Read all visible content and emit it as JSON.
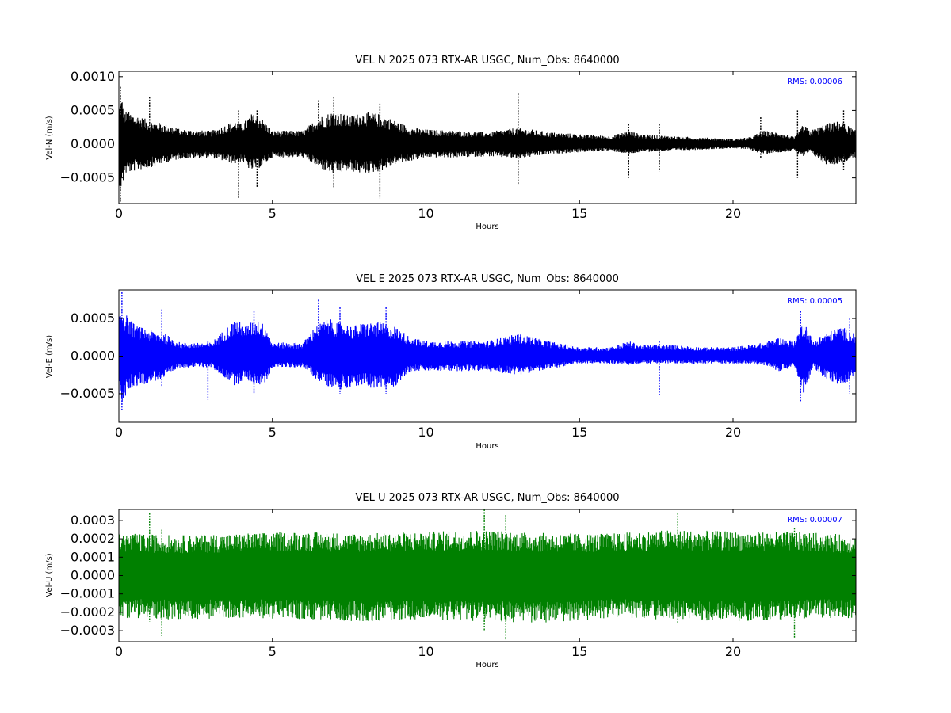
{
  "chart_data": [
    {
      "type": "scatter",
      "title": "VEL N 2025 073 RTX-AR  USGC, Num_Obs: 8640000",
      "xlabel": "Hours",
      "ylabel": "Vel-N (m/s)",
      "xlim": [
        0,
        24
      ],
      "ylim": [
        -0.00088,
        0.00108
      ],
      "xticks": [
        0,
        5,
        10,
        15,
        20
      ],
      "yticks": [
        -0.0005,
        0.0,
        0.0005,
        0.001
      ],
      "ytick_labels": [
        "−0.0005",
        "0.0000",
        "0.0005",
        "0.0010"
      ],
      "color": "#000000",
      "annotation": "RMS:  0.00006",
      "annotation_color": "#0000ff",
      "envelope": {
        "hours": [
          0,
          0.1,
          0.2,
          0.5,
          1,
          1.5,
          2,
          3,
          3.8,
          4,
          4.3,
          4.6,
          5,
          6,
          6.5,
          7,
          7.5,
          8,
          8.5,
          9,
          9.5,
          10,
          11,
          12,
          13,
          14,
          15,
          16,
          16.6,
          17,
          18,
          19,
          20,
          20.5,
          21,
          21.5,
          22,
          22.3,
          22.5,
          23,
          23.5,
          24
        ],
        "upper": [
          0.0006,
          0.0007,
          0.0005,
          0.00045,
          0.00035,
          0.0003,
          0.00022,
          0.0002,
          0.00035,
          0.0003,
          0.00045,
          0.00042,
          0.0002,
          0.0002,
          0.0004,
          0.0005,
          0.00042,
          0.00048,
          0.00045,
          0.00035,
          0.00025,
          0.00022,
          0.0002,
          0.00018,
          0.00025,
          0.00018,
          0.00015,
          0.00012,
          0.0002,
          0.00015,
          0.00012,
          0.0001,
          8e-05,
          0.0001,
          0.0002,
          0.00018,
          0.0001,
          0.0003,
          0.0002,
          0.0003,
          0.00035,
          0.0002
        ],
        "lower": [
          -0.0006,
          -0.0007,
          -0.00045,
          -0.0004,
          -0.00035,
          -0.00028,
          -0.00022,
          -0.0002,
          -0.0003,
          -0.00025,
          -0.0004,
          -0.00035,
          -0.0002,
          -0.0002,
          -0.00035,
          -0.00045,
          -0.0004,
          -0.00045,
          -0.0004,
          -0.0003,
          -0.00025,
          -0.0002,
          -0.0002,
          -0.00018,
          -0.00022,
          -0.00015,
          -0.00012,
          -0.0001,
          -0.00015,
          -0.00012,
          -0.0001,
          -8e-05,
          -6e-05,
          -8e-05,
          -0.00015,
          -0.00012,
          -0.0001,
          -0.0002,
          -0.00012,
          -0.0003,
          -0.0003,
          -0.0002
        ]
      },
      "spikes": [
        {
          "x": 0.05,
          "lo": -0.00085,
          "hi": 0.00085
        },
        {
          "x": 1.0,
          "lo": -0.0003,
          "hi": 0.0007
        },
        {
          "x": 3.9,
          "lo": -0.0008,
          "hi": 0.0005
        },
        {
          "x": 4.5,
          "lo": -0.00065,
          "hi": 0.0005
        },
        {
          "x": 6.5,
          "lo": -0.0003,
          "hi": 0.00065
        },
        {
          "x": 7.0,
          "lo": -0.00065,
          "hi": 0.0007
        },
        {
          "x": 8.5,
          "lo": -0.0008,
          "hi": 0.0006
        },
        {
          "x": 13.0,
          "lo": -0.0006,
          "hi": 0.00075
        },
        {
          "x": 16.6,
          "lo": -0.0005,
          "hi": 0.0003
        },
        {
          "x": 17.6,
          "lo": -0.0004,
          "hi": 0.0003
        },
        {
          "x": 20.9,
          "lo": -0.0002,
          "hi": 0.0004
        },
        {
          "x": 22.1,
          "lo": -0.0005,
          "hi": 0.0005
        },
        {
          "x": 23.6,
          "lo": -0.0004,
          "hi": 0.0005
        }
      ]
    },
    {
      "type": "scatter",
      "title": "VEL E 2025 073 RTX-AR  USGC, Num_Obs: 8640000",
      "xlabel": "Hours",
      "ylabel": "Vel-E (m/s)",
      "xlim": [
        0,
        24
      ],
      "ylim": [
        -0.00088,
        0.00088
      ],
      "xticks": [
        0,
        5,
        10,
        15,
        20
      ],
      "yticks": [
        -0.0005,
        0.0,
        0.0005
      ],
      "ytick_labels": [
        "−0.0005",
        "0.0000",
        "0.0005"
      ],
      "color": "#0000ff",
      "annotation": "RMS:  0.00005",
      "annotation_color": "#0000ff",
      "envelope": {
        "hours": [
          0,
          0.1,
          0.3,
          0.6,
          1,
          1.5,
          2,
          3,
          3.8,
          4.1,
          4.5,
          4.8,
          5,
          6,
          6.4,
          6.8,
          7.2,
          7.6,
          8,
          8.5,
          9,
          9.5,
          10,
          11,
          12,
          13,
          14,
          15,
          16,
          16.6,
          17,
          18,
          19,
          20,
          21,
          21.5,
          22,
          22.3,
          22.6,
          23,
          23.5,
          24
        ],
        "upper": [
          0.0006,
          0.0007,
          0.0005,
          0.0004,
          0.00035,
          0.0003,
          0.00018,
          0.00018,
          0.0005,
          0.0004,
          0.0005,
          0.0004,
          0.00018,
          0.00018,
          0.0004,
          0.0005,
          0.00045,
          0.0004,
          0.00045,
          0.00045,
          0.0004,
          0.00025,
          0.0002,
          0.0002,
          0.0002,
          0.0003,
          0.0002,
          0.00012,
          0.00012,
          0.0002,
          0.00015,
          0.00015,
          0.00012,
          0.00012,
          0.00018,
          0.00025,
          0.0002,
          0.0005,
          0.0002,
          0.0003,
          0.0004,
          0.0003
        ],
        "lower": [
          -0.0005,
          -0.0007,
          -0.00045,
          -0.0004,
          -0.00035,
          -0.0003,
          -0.00015,
          -0.00015,
          -0.0004,
          -0.0003,
          -0.0004,
          -0.00035,
          -0.00015,
          -0.00015,
          -0.0003,
          -0.0004,
          -0.00045,
          -0.0004,
          -0.0004,
          -0.00045,
          -0.0004,
          -0.0002,
          -0.0002,
          -0.0002,
          -0.0002,
          -0.00025,
          -0.00018,
          -0.0001,
          -0.0001,
          -0.00012,
          -0.0001,
          -0.0001,
          -0.0001,
          -0.0001,
          -0.00012,
          -0.0002,
          -0.00015,
          -0.0005,
          -0.00015,
          -0.0003,
          -0.0004,
          -0.0003
        ]
      },
      "spikes": [
        {
          "x": 0.1,
          "lo": -0.00072,
          "hi": 0.00085
        },
        {
          "x": 1.4,
          "lo": -0.0004,
          "hi": 0.00062
        },
        {
          "x": 2.9,
          "lo": -0.00058,
          "hi": 0.0002
        },
        {
          "x": 4.4,
          "lo": -0.0005,
          "hi": 0.0006
        },
        {
          "x": 6.5,
          "lo": -0.0003,
          "hi": 0.00075
        },
        {
          "x": 7.2,
          "lo": -0.0005,
          "hi": 0.00065
        },
        {
          "x": 8.7,
          "lo": -0.0005,
          "hi": 0.00065
        },
        {
          "x": 17.6,
          "lo": -0.00052,
          "hi": 0.0002
        },
        {
          "x": 22.2,
          "lo": -0.0006,
          "hi": 0.0006
        },
        {
          "x": 23.8,
          "lo": -0.0005,
          "hi": 0.0005
        }
      ]
    },
    {
      "type": "line",
      "title": "VEL U 2025 073 RTX-AR  USGC, Num_Obs: 8640000",
      "xlabel": "Hours",
      "ylabel": "Vel-U (m/s)",
      "xlim": [
        0,
        24
      ],
      "ylim": [
        -0.00036,
        0.00036
      ],
      "xticks": [
        0,
        5,
        10,
        15,
        20
      ],
      "yticks": [
        -0.0003,
        -0.0002,
        -0.0001,
        0.0,
        0.0001,
        0.0002,
        0.0003
      ],
      "ytick_labels": [
        "−0.0003",
        "−0.0002",
        "−0.0001",
        "0.0000",
        "0.0001",
        "0.0002",
        "0.0003"
      ],
      "color": "#008000",
      "annotation": "RMS:  0.00007",
      "annotation_color": "#0000ff",
      "envelope": {
        "hours": [
          0,
          2,
          4,
          6,
          8,
          10,
          12,
          14,
          16,
          18,
          20,
          22,
          24
        ],
        "upper": [
          0.00023,
          0.00022,
          0.00023,
          0.00024,
          0.00023,
          0.00024,
          0.00025,
          0.00023,
          0.00023,
          0.00025,
          0.00024,
          0.00024,
          0.00022
        ],
        "lower": [
          -0.00023,
          -0.00024,
          -0.00023,
          -0.00024,
          -0.00025,
          -0.00024,
          -0.00025,
          -0.00026,
          -0.00023,
          -0.00024,
          -0.00025,
          -0.00024,
          -0.00023
        ]
      },
      "spikes": [
        {
          "x": 1.0,
          "lo": -0.00025,
          "hi": 0.00034
        },
        {
          "x": 1.4,
          "lo": -0.00033,
          "hi": 0.00025
        },
        {
          "x": 11.9,
          "lo": -0.0003,
          "hi": 0.00036
        },
        {
          "x": 12.6,
          "lo": -0.00035,
          "hi": 0.00033
        },
        {
          "x": 18.2,
          "lo": -0.00026,
          "hi": 0.00034
        },
        {
          "x": 22.0,
          "lo": -0.00034,
          "hi": 0.00026
        }
      ]
    }
  ]
}
